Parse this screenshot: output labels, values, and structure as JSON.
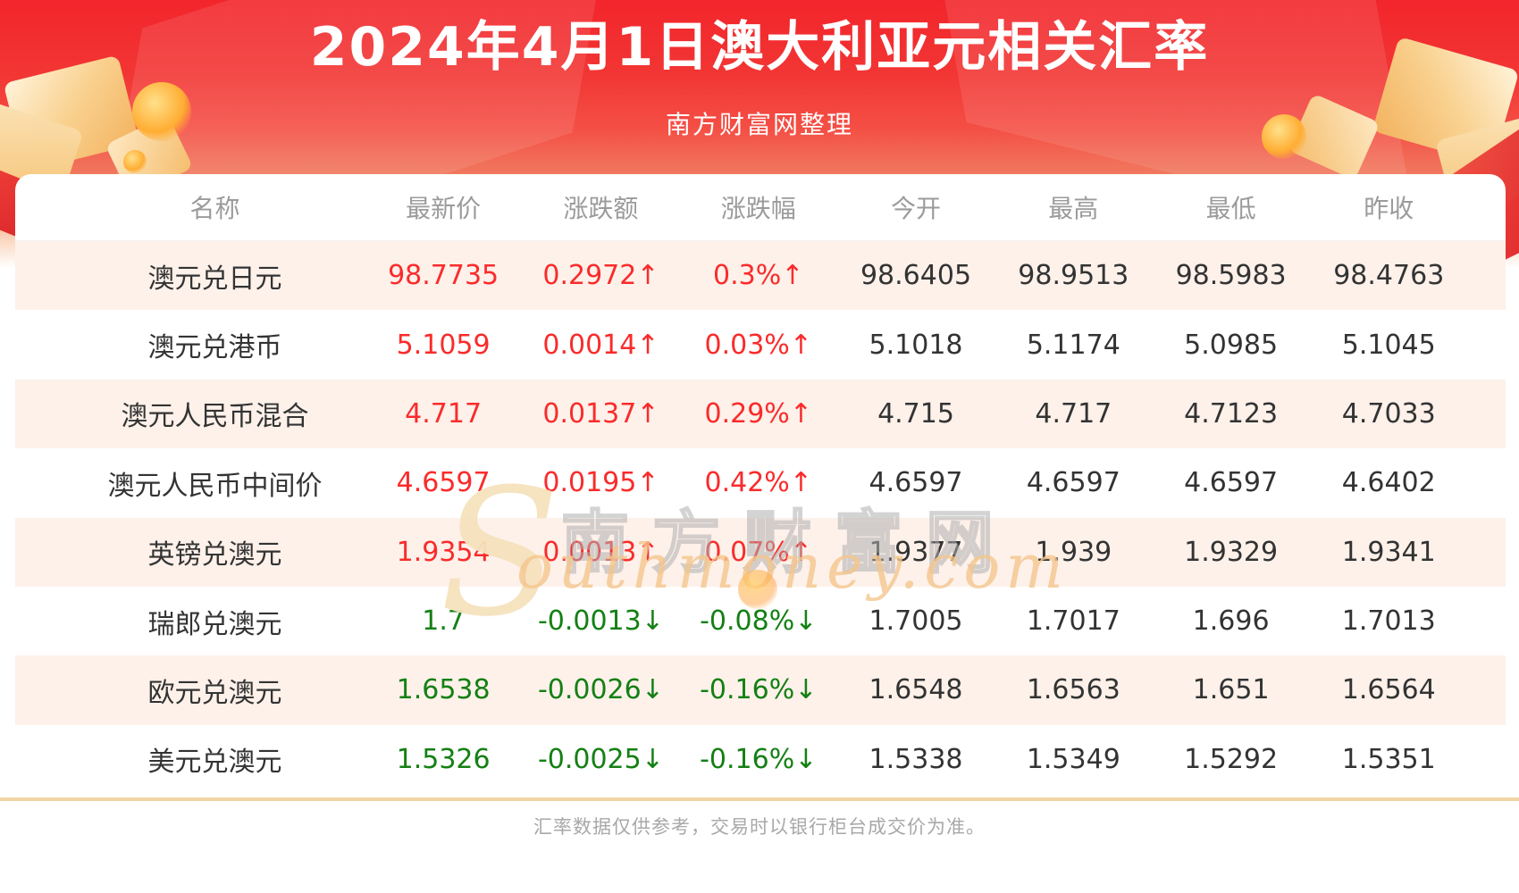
{
  "banner": {
    "title": "2024年4月1日澳大利亚元相关汇率",
    "subtitle": "南方财富网整理"
  },
  "chart_data": {
    "type": "table",
    "title": "2024年4月1日澳大利亚元相关汇率",
    "columns": [
      "名称",
      "最新价",
      "涨跌额",
      "涨跌幅",
      "今开",
      "最高",
      "最低",
      "昨收"
    ],
    "rows": [
      {
        "name": "澳元兑日元",
        "latest": "98.7735",
        "change": "0.2972↑",
        "change_pct": "0.3%↑",
        "open": "98.6405",
        "high": "98.9513",
        "low": "98.5983",
        "prev_close": "98.4763",
        "trend": "up"
      },
      {
        "name": "澳元兑港币",
        "latest": "5.1059",
        "change": "0.0014↑",
        "change_pct": "0.03%↑",
        "open": "5.1018",
        "high": "5.1174",
        "low": "5.0985",
        "prev_close": "5.1045",
        "trend": "up"
      },
      {
        "name": "澳元人民币混合",
        "latest": "4.717",
        "change": "0.0137↑",
        "change_pct": "0.29%↑",
        "open": "4.715",
        "high": "4.717",
        "low": "4.7123",
        "prev_close": "4.7033",
        "trend": "up"
      },
      {
        "name": "澳元人民币中间价",
        "latest": "4.6597",
        "change": "0.0195↑",
        "change_pct": "0.42%↑",
        "open": "4.6597",
        "high": "4.6597",
        "low": "4.6597",
        "prev_close": "4.6402",
        "trend": "up"
      },
      {
        "name": "英镑兑澳元",
        "latest": "1.9354",
        "change": "0.0013↑",
        "change_pct": "0.07%↑",
        "open": "1.9377",
        "high": "1.939",
        "low": "1.9329",
        "prev_close": "1.9341",
        "trend": "up"
      },
      {
        "name": "瑞郎兑澳元",
        "latest": "1.7",
        "change": "-0.0013↓",
        "change_pct": "-0.08%↓",
        "open": "1.7005",
        "high": "1.7017",
        "low": "1.696",
        "prev_close": "1.7013",
        "trend": "down"
      },
      {
        "name": "欧元兑澳元",
        "latest": "1.6538",
        "change": "-0.0026↓",
        "change_pct": "-0.16%↓",
        "open": "1.6548",
        "high": "1.6563",
        "low": "1.651",
        "prev_close": "1.6564",
        "trend": "down"
      },
      {
        "name": "美元兑澳元",
        "latest": "1.5326",
        "change": "-0.0025↓",
        "change_pct": "-0.16%↓",
        "open": "1.5338",
        "high": "1.5349",
        "low": "1.5292",
        "prev_close": "1.5351",
        "trend": "down"
      }
    ]
  },
  "watermark": {
    "initial": "S",
    "cjk": "南方财富网",
    "script": "outhmoney.com"
  },
  "footer": {
    "note": "汇率数据仅供参考，交易时以银行柜台成交价为准。"
  },
  "colors": {
    "up": "#fa2b2b",
    "down": "#148014",
    "header_text": "#9b9b9b",
    "row_alt_bg": "#fdf1ea",
    "banner_red": "#f2252b",
    "divider": "#f3d4a3"
  }
}
